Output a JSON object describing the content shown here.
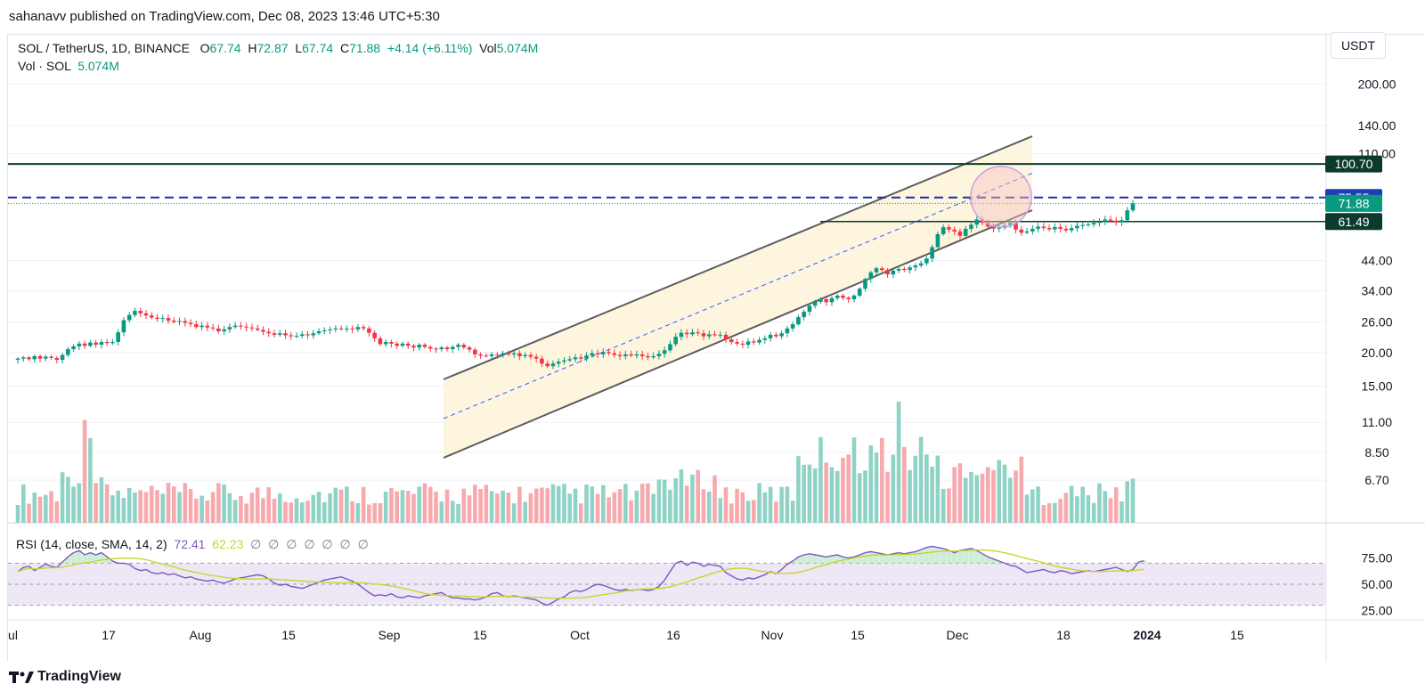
{
  "header": {
    "published_text": "sahanavv published on TradingView.com, Dec 08, 2023 13:46 UTC+5:30"
  },
  "legend": {
    "symbol": "SOL / TetherUS, 1D, BINANCE",
    "o_label": "O",
    "o_value": "67.74",
    "h_label": "H",
    "h_value": "72.87",
    "l_label": "L",
    "l_value": "67.74",
    "c_label": "C",
    "c_value": "71.88",
    "change": "+4.14 (+6.11%)",
    "vol_label": "Vol",
    "vol_value": "5.074M",
    "vol_row_label": "Vol · SOL",
    "vol_row_value": "5.074M"
  },
  "currency_button": "USDT",
  "rsi_legend": {
    "name": "RSI (14, close, SMA, 14, 2)",
    "rsi_value": "72.41",
    "sma_value": "62.23",
    "placeholders": "∅ ∅ ∅ ∅ ∅ ∅ ∅"
  },
  "footer": {
    "brand": "TradingView"
  },
  "colors": {
    "up": "#089981",
    "down": "#f23645",
    "vol_up": "#8fd3c6",
    "vol_down": "#f7a9ae",
    "rsi_line": "#7e57c2",
    "rsi_sma": "#c8d62c",
    "rsi_band": "#ede7f6",
    "channel_fill": "#fdf3d8",
    "channel_line": "#5d5d5d",
    "level_line": "#0c3b2e",
    "dashed_level": "#1a2ea8",
    "mid_dash": "#2962ff"
  },
  "chart_data": {
    "type": "candlestick",
    "y_scale": "log",
    "price_axis_ticks": [
      "200.00",
      "140.00",
      "110.00",
      "44.00",
      "34.00",
      "26.00",
      "20.00",
      "15.00",
      "11.00",
      "8.50",
      "6.70"
    ],
    "price_axis_tick_values": [
      200,
      140,
      110,
      44,
      34,
      26,
      20,
      15,
      11,
      8.5,
      6.7
    ],
    "price_labels": [
      {
        "value": 100.7,
        "text": "100.70",
        "style": "dark"
      },
      {
        "value": 75.55,
        "text": "75.55",
        "style": "blue"
      },
      {
        "value": 71.88,
        "text": "71.88",
        "style": "green"
      },
      {
        "value": 61.49,
        "text": "61.49",
        "style": "dark"
      }
    ],
    "time_axis_ticks": [
      "Jul",
      "17",
      "Aug",
      "15",
      "Sep",
      "15",
      "Oct",
      "16",
      "Nov",
      "15",
      "Dec",
      "18",
      "2024",
      "15"
    ],
    "rsi_axis_ticks": [
      "75.00",
      "50.00",
      "25.00"
    ],
    "rsi_axis_tick_values": [
      75,
      50,
      25
    ],
    "candles_close": [
      19.0,
      19.2,
      18.9,
      19.4,
      19.0,
      19.3,
      19.1,
      18.8,
      19.6,
      20.6,
      21.1,
      21.6,
      21.2,
      21.8,
      21.4,
      21.9,
      21.7,
      21.9,
      23.8,
      26.4,
      27.6,
      28.6,
      28.0,
      27.5,
      27.0,
      26.7,
      26.9,
      26.3,
      26.0,
      26.2,
      25.8,
      25.5,
      24.9,
      25.2,
      24.8,
      24.6,
      24.0,
      24.4,
      24.9,
      25.2,
      25.0,
      24.8,
      24.6,
      24.3,
      23.9,
      23.6,
      23.3,
      23.6,
      23.2,
      23.0,
      23.1,
      23.4,
      23.2,
      23.6,
      24.0,
      24.2,
      24.4,
      24.6,
      24.5,
      24.6,
      24.4,
      24.9,
      24.6,
      23.7,
      22.6,
      21.5,
      21.9,
      21.6,
      21.2,
      21.6,
      21.2,
      20.9,
      21.4,
      21.0,
      20.7,
      20.6,
      20.9,
      20.6,
      21.0,
      21.4,
      20.9,
      20.5,
      19.7,
      19.5,
      19.4,
      19.7,
      19.6,
      19.9,
      19.7,
      19.9,
      19.4,
      19.6,
      19.3,
      19.0,
      18.2,
      17.8,
      18.2,
      18.5,
      18.7,
      18.9,
      19.2,
      19.0,
      19.5,
      19.9,
      19.7,
      20.1,
      19.9,
      19.6,
      19.4,
      19.7,
      19.5,
      19.7,
      19.4,
      19.2,
      19.4,
      19.8,
      20.4,
      21.5,
      22.9,
      23.7,
      23.4,
      23.8,
      23.6,
      23.0,
      23.4,
      23.2,
      23.3,
      22.4,
      21.9,
      21.6,
      21.4,
      22.0,
      21.8,
      22.3,
      22.6,
      23.3,
      23.0,
      23.6,
      24.6,
      25.5,
      27.1,
      28.4,
      29.9,
      30.9,
      31.6,
      30.8,
      31.9,
      32.6,
      32.0,
      31.6,
      32.6,
      34.6,
      37.6,
      39.8,
      41.2,
      40.6,
      39.1,
      40.4,
      41.0,
      40.6,
      41.5,
      42.2,
      43.0,
      44.8,
      49.4,
      55.2,
      58.6,
      57.4,
      56.5,
      54.4,
      57.8,
      59.9,
      62.6,
      60.8,
      58.9,
      57.9,
      58.3,
      59.6,
      60.8,
      57.4,
      55.9,
      56.5,
      57.8,
      58.9,
      58.2,
      57.5,
      58.7,
      57.8,
      57.0,
      58.1,
      59.3,
      59.7,
      60.0,
      60.8,
      61.3,
      62.6,
      62.0,
      61.0,
      62.2,
      67.7,
      71.88
    ],
    "rsi_values": [
      62,
      66,
      67,
      63,
      66,
      69,
      67,
      66,
      71,
      76,
      80,
      82,
      78,
      80,
      78,
      80,
      76,
      72,
      70,
      70,
      69,
      65,
      63,
      64,
      61,
      60,
      61,
      59,
      60,
      58,
      56,
      57,
      55,
      54,
      53,
      54,
      52,
      51,
      53,
      55,
      56,
      57,
      58,
      59,
      58,
      55,
      51,
      49,
      50,
      48,
      47,
      46,
      48,
      50,
      52,
      54,
      55,
      56,
      57,
      55,
      53,
      50,
      46,
      42,
      39,
      40,
      39,
      41,
      38,
      37,
      39,
      38,
      37,
      39,
      40,
      41,
      42,
      39,
      37,
      37,
      36,
      36,
      35,
      36,
      38,
      41,
      42,
      39,
      38,
      39,
      38,
      37,
      36,
      35,
      32,
      30,
      33,
      36,
      38,
      42,
      44,
      43,
      45,
      48,
      50,
      49,
      47,
      45,
      44,
      45,
      44,
      45,
      45,
      44,
      45,
      48,
      54,
      62,
      70,
      72,
      68,
      71,
      70,
      67,
      69,
      68,
      67,
      61,
      58,
      55,
      54,
      56,
      55,
      57,
      59,
      62,
      60,
      64,
      69,
      72,
      76,
      78,
      79,
      78,
      77,
      76,
      77,
      78,
      76,
      75,
      76,
      78,
      80,
      81,
      80,
      79,
      78,
      79,
      80,
      79,
      80,
      81,
      83,
      85,
      86,
      85,
      84,
      82,
      80,
      82,
      83,
      84,
      82,
      79,
      76,
      74,
      72,
      70,
      68,
      67,
      64,
      61,
      62,
      63,
      64,
      62,
      61,
      63,
      62,
      60,
      61,
      62,
      63,
      62,
      63,
      64,
      65,
      66,
      64,
      62,
      64,
      71,
      72.41
    ],
    "rsi_sma_value": 62.23,
    "levels": [
      100.7,
      75.55,
      61.49
    ],
    "last_price": 71.88
  }
}
